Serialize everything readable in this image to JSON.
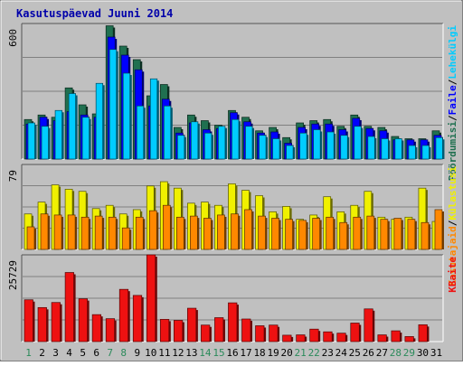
{
  "chart_data": {
    "type": "bar",
    "title": "Kasutuspäevad Juuni 2014",
    "days": [
      "1",
      "2",
      "3",
      "4",
      "5",
      "6",
      "7",
      "8",
      "9",
      "10",
      "11",
      "12",
      "13",
      "14",
      "15",
      "16",
      "17",
      "18",
      "19",
      "20",
      "21",
      "22",
      "23",
      "24",
      "25",
      "26",
      "27",
      "28",
      "29",
      "30",
      "31"
    ],
    "weekend_days": [
      "1",
      "7",
      "8",
      "14",
      "15",
      "21",
      "22",
      "28",
      "29"
    ],
    "colors": {
      "title": "#0000aa",
      "weekday": "#000000",
      "weekend": "#2a8a5a",
      "hits": "#207050",
      "files": "#0000ff",
      "pages": "#00ccff",
      "visits": "#f0f000",
      "sites": "#ff8800",
      "kbytes": "#ee1111"
    },
    "panels": [
      {
        "max_label": "600",
        "ylim": [
          0,
          600
        ],
        "legend": [
          {
            "text": "Pöördumisi",
            "color": "#207050"
          },
          {
            "text": "/",
            "color": "#000000"
          },
          {
            "text": "Faile",
            "color": "#0000ff"
          },
          {
            "text": "/",
            "color": "#000000"
          },
          {
            "text": "Lehekülgi",
            "color": "#00ccff"
          }
        ],
        "series": [
          {
            "name": "Pöördumisi",
            "key": "hits",
            "values": [
              175,
              195,
              185,
              315,
              240,
              200,
              590,
              500,
              440,
              280,
              330,
              140,
              195,
              170,
              150,
              215,
              185,
              125,
              140,
              95,
              160,
              170,
              175,
              145,
              195,
              145,
              140,
              100,
              90,
              90,
              125
            ]
          },
          {
            "name": "Faile",
            "key": "files",
            "values": [
              155,
              185,
              170,
              210,
              195,
              185,
              540,
              460,
              395,
              235,
              265,
              115,
              160,
              130,
              135,
              205,
              165,
              115,
              120,
              70,
              140,
              155,
              155,
              130,
              180,
              135,
              125,
              85,
              85,
              85,
              105
            ]
          },
          {
            "name": "Lehekülgi",
            "key": "pages",
            "values": [
              160,
              145,
              215,
              290,
              185,
              335,
              485,
              380,
              235,
              355,
              235,
              105,
              165,
              115,
              145,
              175,
              145,
              105,
              90,
              60,
              115,
              130,
              120,
              105,
              145,
              100,
              90,
              90,
              60,
              60,
              95
            ]
          }
        ]
      },
      {
        "max_label": "79",
        "ylim": [
          0,
          79
        ],
        "legend": [
          {
            "text": "Kasutajaid",
            "color": "#ff8800"
          },
          {
            "text": "/",
            "color": "#000000"
          },
          {
            "text": "Külastusi",
            "color": "#f0f000"
          }
        ],
        "series": [
          {
            "name": "Külastusi",
            "key": "visits",
            "values": [
              33,
              44,
              60,
              56,
              54,
              38,
              41,
              33,
              37,
              59,
              63,
              57,
              43,
              44,
              41,
              61,
              55,
              50,
              35,
              40,
              28,
              32,
              49,
              35,
              41,
              54,
              30,
              28,
              30,
              57,
              26
            ]
          },
          {
            "name": "Kasutajaid",
            "key": "sites",
            "values": [
              21,
              33,
              32,
              32,
              30,
              31,
              30,
              20,
              30,
              36,
              41,
              30,
              31,
              29,
              32,
              33,
              37,
              31,
              29,
              28,
              27,
              29,
              30,
              25,
              30,
              31,
              28,
              29,
              28,
              25,
              37
            ]
          }
        ]
      },
      {
        "max_label": "25729",
        "ylim": [
          0,
          25729
        ],
        "legend": [
          {
            "text": "KBaite",
            "color": "#ee1111"
          }
        ],
        "series": [
          {
            "name": "KBaite",
            "key": "kbytes",
            "values": [
              12400,
              10100,
              11600,
              20500,
              12700,
              8000,
              6800,
              15500,
              13700,
              25729,
              6600,
              6300,
              9900,
              4900,
              7100,
              11500,
              6700,
              4700,
              4900,
              1900,
              2000,
              3700,
              2900,
              2500,
              5500,
              9700,
              2000,
              3200,
              1500,
              5000,
              0
            ]
          }
        ]
      }
    ]
  }
}
